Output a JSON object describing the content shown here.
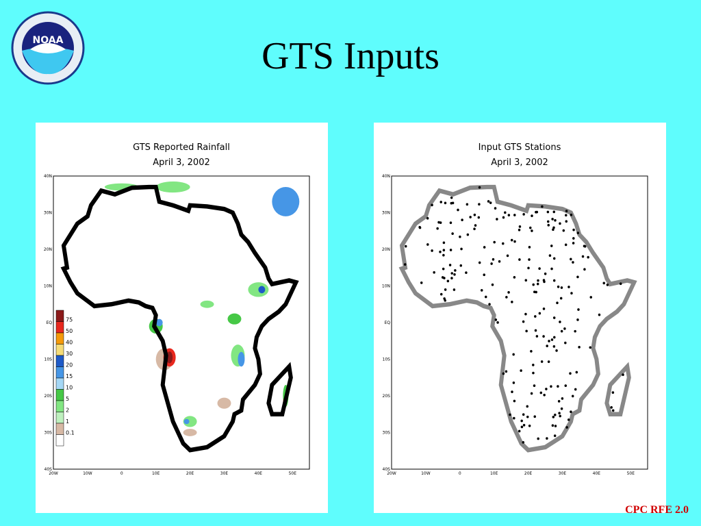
{
  "header": {
    "title": "GTS Inputs"
  },
  "footer": "CPC RFE 2.0",
  "latitude_labels": [
    "40N",
    "30N",
    "20N",
    "10N",
    "EQ",
    "10S",
    "20S",
    "30S",
    "40S"
  ],
  "longitude_labels": [
    "20W",
    "10W",
    "0",
    "10E",
    "20E",
    "30E",
    "40E",
    "50E"
  ],
  "panels": [
    {
      "title": [
        "GTS Reported Rainfall",
        "April 3, 2002"
      ],
      "legend": [
        {
          "label": 75,
          "color": "#8b1a1a"
        },
        {
          "label": 50,
          "color": "#e8281e"
        },
        {
          "label": 40,
          "color": "#f59a0a"
        },
        {
          "label": 30,
          "color": "#f5dc78"
        },
        {
          "label": 20,
          "color": "#1e5ac8"
        },
        {
          "label": 15,
          "color": "#4696e6"
        },
        {
          "label": 10,
          "color": "#a5d7f5"
        },
        {
          "label": 5,
          "color": "#46c846"
        },
        {
          "label": 2,
          "color": "#82e682"
        },
        {
          "label": 1,
          "color": "#bef0be"
        },
        {
          "label": 0.1,
          "color": "#d7b9a5"
        }
      ]
    },
    {
      "title": [
        "Input GTS Stations",
        "April 3, 2002"
      ]
    }
  ]
}
